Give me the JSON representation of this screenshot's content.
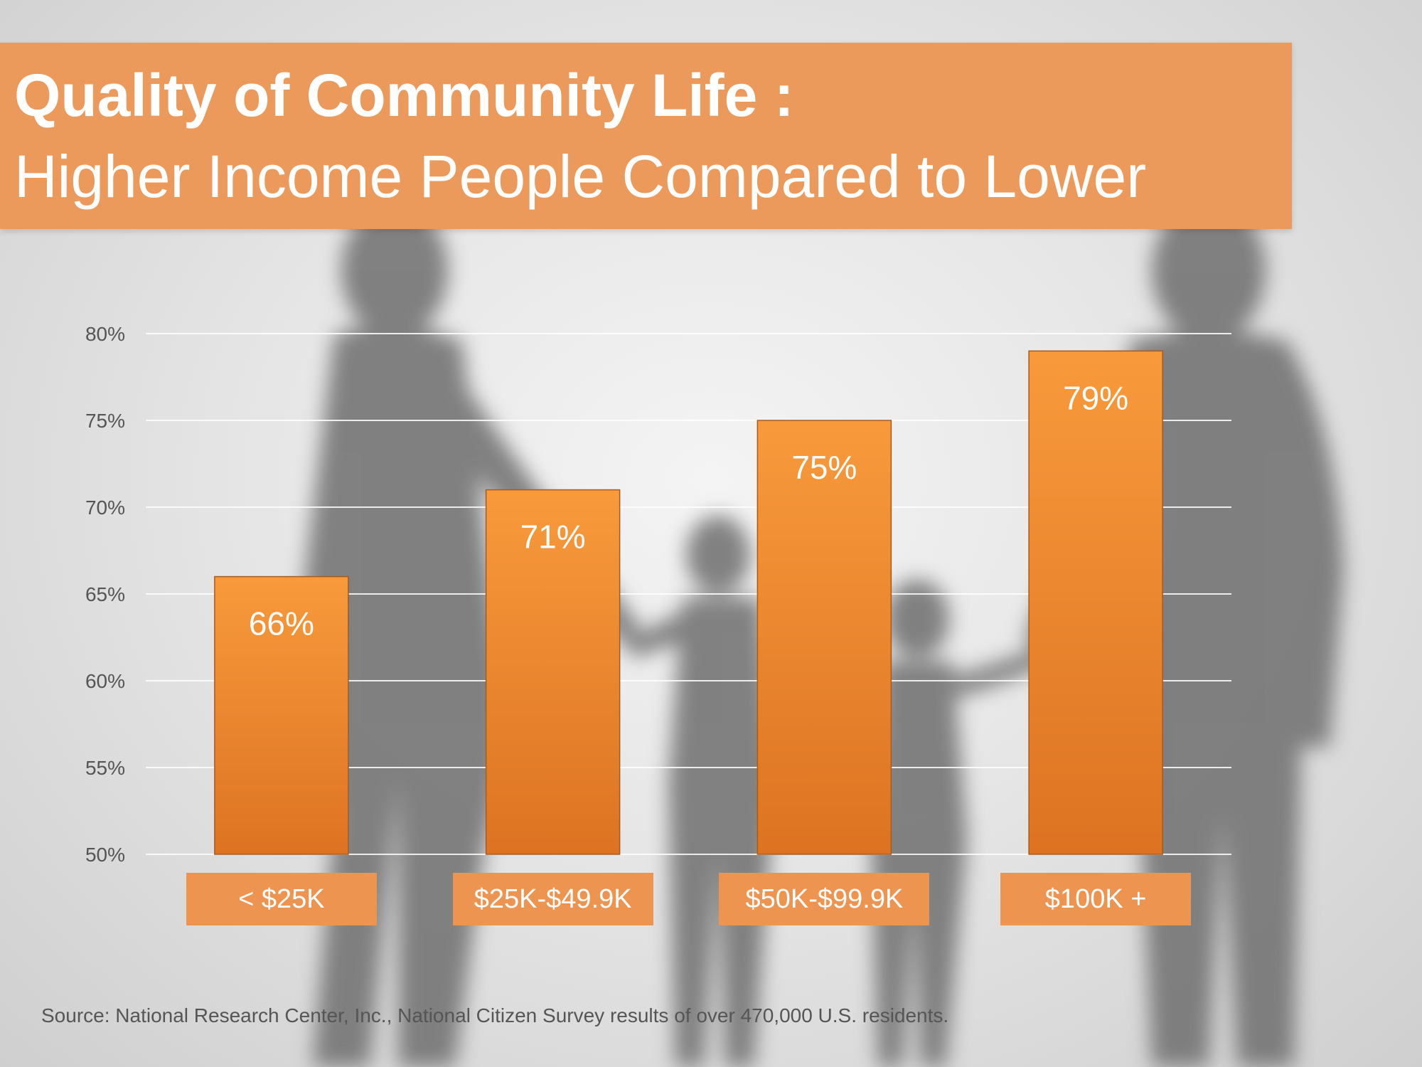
{
  "title": {
    "line1": "Quality of Community Life :",
    "line2": "Higher Income People Compared to Lower"
  },
  "source": "Source: National Research Center, Inc., National Citizen Survey results of over 470,000 U.S. residents.",
  "colors": {
    "banner": "#eb9a5b",
    "bar_top": "#f89a3c",
    "bar_bottom": "#dd7322",
    "category_box": "#ec9450"
  },
  "chart_data": {
    "type": "bar",
    "categories": [
      "< $25K",
      "$25K-$49.9K",
      "$50K-$99.9K",
      "$100K +"
    ],
    "values": [
      66,
      71,
      75,
      79
    ],
    "data_labels": [
      "66%",
      "71%",
      "75%",
      "79%"
    ],
    "ylim": [
      50,
      80
    ],
    "yticks": [
      50,
      55,
      60,
      65,
      70,
      75,
      80
    ],
    "ytick_labels": [
      "50%",
      "55%",
      "60%",
      "65%",
      "70%",
      "75%",
      "80%"
    ],
    "grid": true,
    "legend": "none"
  }
}
